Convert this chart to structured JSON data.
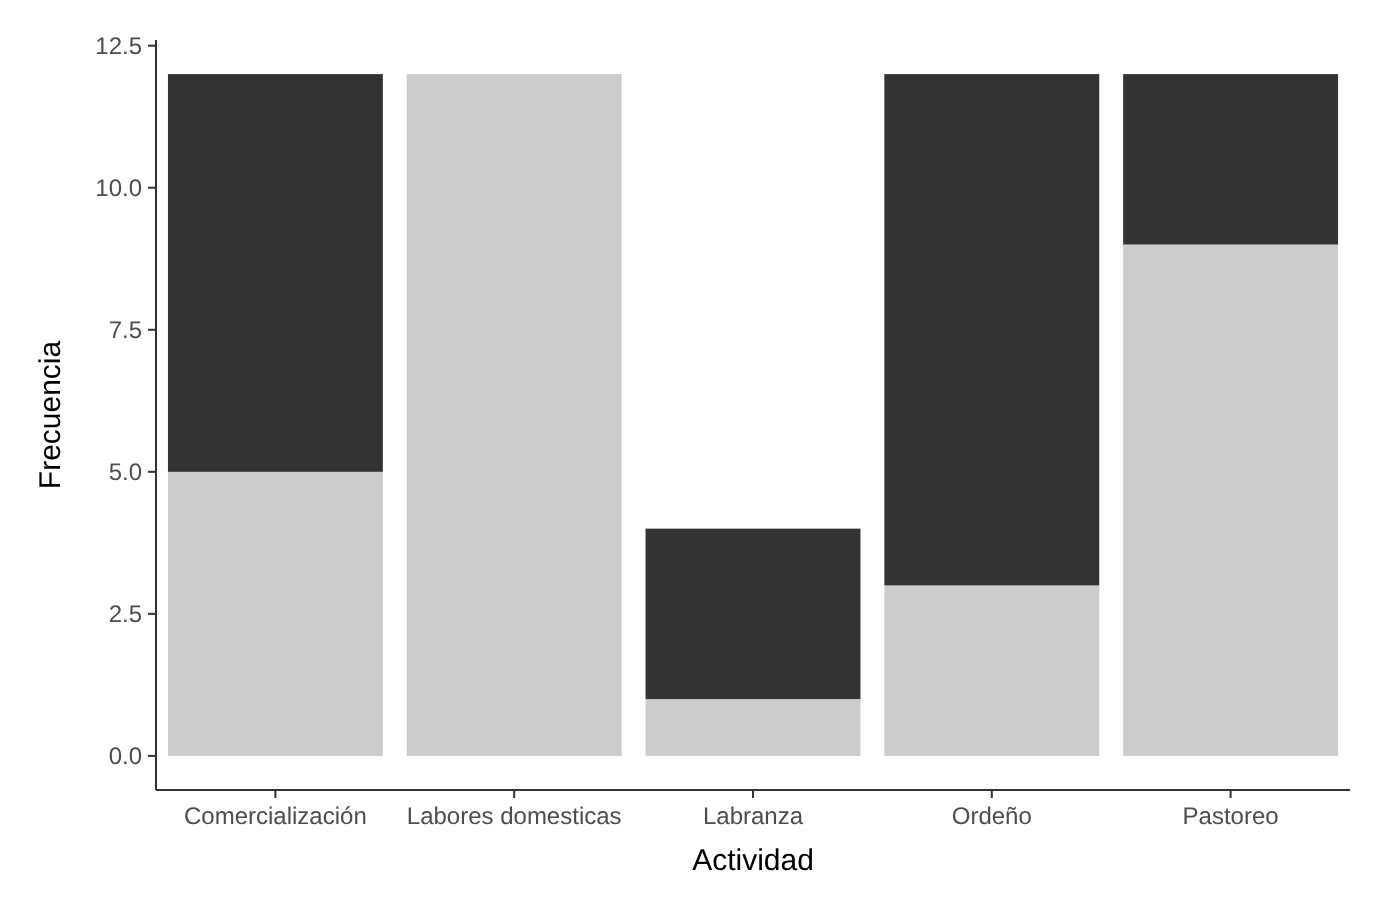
{
  "chart_data": {
    "type": "bar",
    "stacked": true,
    "xlabel": "Actividad",
    "ylabel": "Frecuencia",
    "categories": [
      "Comercialización",
      "Labores domesticas",
      "Labranza",
      "Ordeño",
      "Pastoreo"
    ],
    "series": [
      {
        "color": "#cccccc",
        "values": [
          5,
          12,
          1,
          3,
          9
        ]
      },
      {
        "color": "#333333",
        "values": [
          7,
          0,
          3,
          9,
          3
        ]
      }
    ],
    "ylim": [
      -0.6,
      12.6
    ],
    "yticks": [
      {
        "value": 0,
        "label": "0.0"
      },
      {
        "value": 2.5,
        "label": "2.5"
      },
      {
        "value": 5,
        "label": "5.0"
      },
      {
        "value": 7.5,
        "label": "7.5"
      },
      {
        "value": 10,
        "label": "10.0"
      },
      {
        "value": 12.5,
        "label": "12.5"
      }
    ],
    "grid": false
  }
}
